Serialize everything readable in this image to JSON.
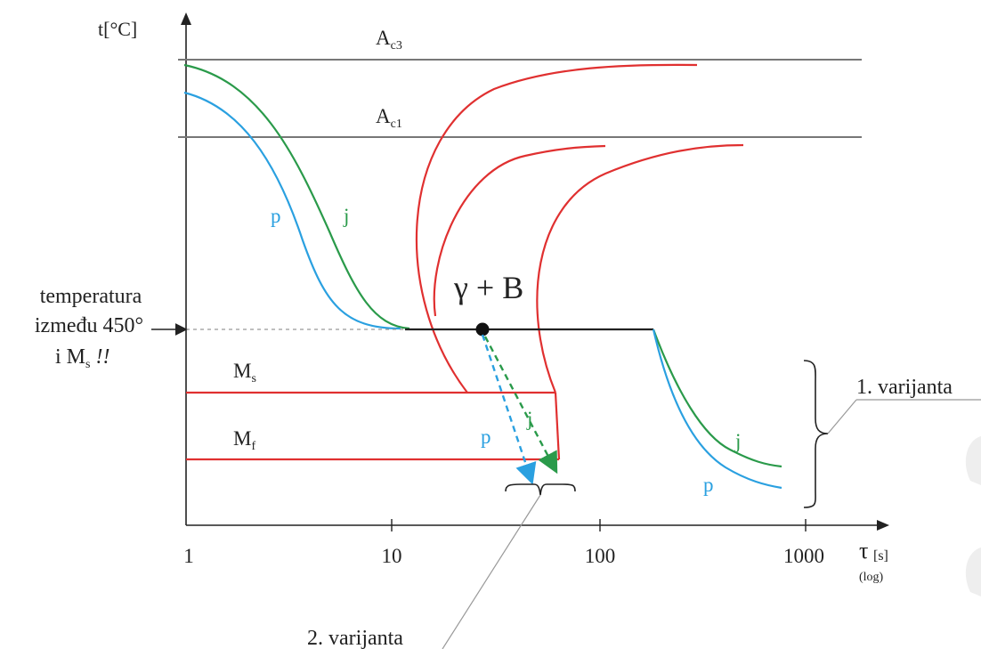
{
  "axes": {
    "y_label": "t[°C]",
    "x_label": "τ",
    "x_unit": "[s]",
    "x_scale_note": "(log)",
    "x_scale": "log",
    "x_ticks": [
      "1",
      "10",
      "100",
      "1000"
    ]
  },
  "lines": {
    "ac3": {
      "main": "A",
      "sub": "c3"
    },
    "ac1": {
      "main": "A",
      "sub": "c1"
    },
    "ms": {
      "main": "M",
      "sub": "s"
    },
    "mf": {
      "main": "M",
      "sub": "f"
    }
  },
  "region_label": "γ + B",
  "curve_labels": {
    "p_left": "p",
    "j_left": "j",
    "p_mid": "p",
    "j_mid": "j",
    "p_right": "p",
    "j_right": "j"
  },
  "annotations": {
    "temp_line1": "temperatura",
    "temp_line2": "između 450°",
    "temp_line3_main": "i M",
    "temp_line3_sub": "s",
    "temp_line3_tail": " !!",
    "variant1": "1. varijanta",
    "variant2": "2. varijanta"
  },
  "colors": {
    "axis": "#222222",
    "critical_lines": "#777777",
    "transformation_curves": "#e03030",
    "curve_p": "#2aa0e0",
    "curve_j": "#2a9a4a",
    "isotherm": "#222222"
  }
}
